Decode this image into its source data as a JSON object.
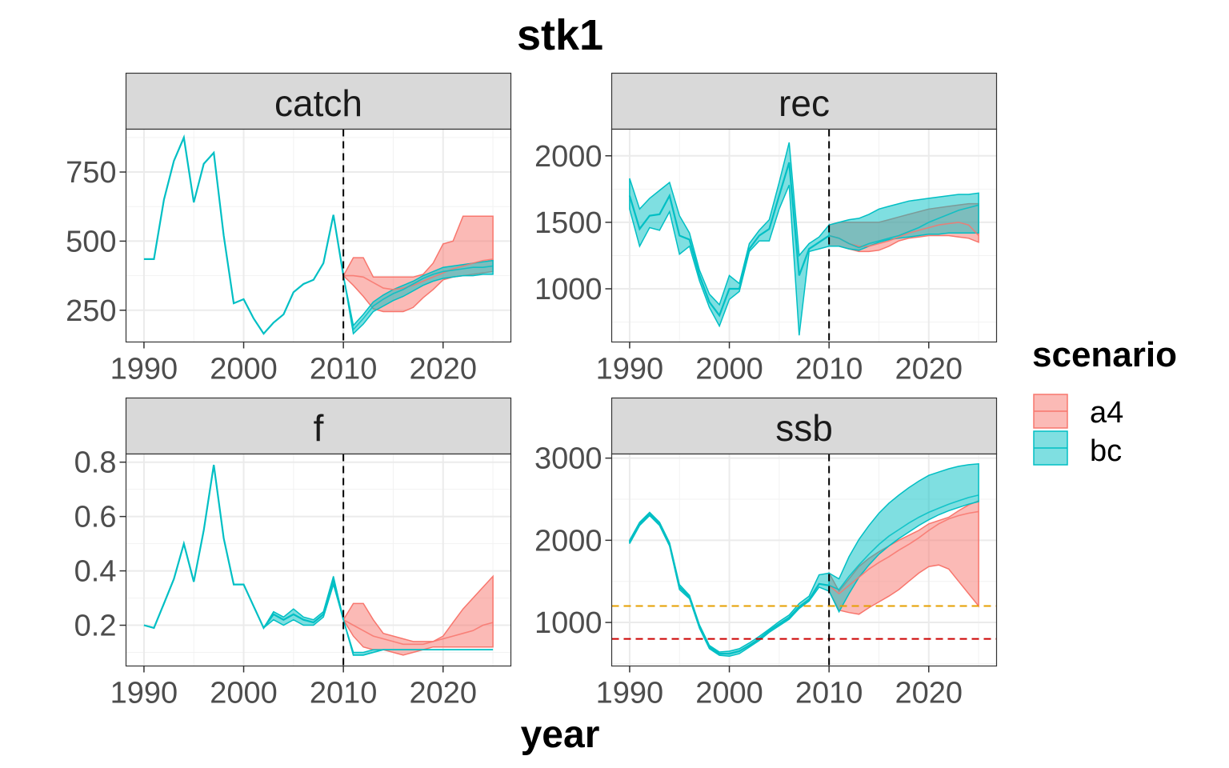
{
  "title": "stk1",
  "xlabel": "year",
  "legend": {
    "title": "scenario",
    "items": [
      {
        "label": "a4",
        "fill": "#F8766D"
      },
      {
        "label": "bc",
        "fill": "#00BFC4"
      }
    ]
  },
  "chart_data": [
    {
      "type": "line",
      "panel": "catch",
      "x_ticks": [
        1990,
        2000,
        2010,
        2020
      ],
      "y_ticks": [
        250,
        500,
        750
      ],
      "ylim": [
        135,
        905
      ],
      "xlim": [
        1988.2,
        2026.8
      ],
      "vline_x": 2010,
      "hlines": [],
      "historical": {
        "x": [
          1990,
          1991,
          1992,
          1993,
          1994,
          1995,
          1996,
          1997,
          1998,
          1999,
          2000,
          2001,
          2002,
          2003,
          2004,
          2005,
          2006,
          2007,
          2008,
          2009,
          2010
        ],
        "y": [
          435,
          435,
          650,
          790,
          875,
          640,
          780,
          820,
          520,
          275,
          290,
          220,
          165,
          205,
          235,
          315,
          345,
          360,
          420,
          595,
          375
        ]
      },
      "series": [
        {
          "name": "a4",
          "x": [
            2010,
            2011,
            2012,
            2013,
            2014,
            2015,
            2016,
            2017,
            2018,
            2019,
            2020,
            2021,
            2022,
            2023,
            2024,
            2025
          ],
          "median": [
            375,
            375,
            370,
            350,
            330,
            325,
            330,
            340,
            355,
            370,
            385,
            400,
            410,
            420,
            430,
            435
          ],
          "lower": [
            375,
            340,
            300,
            255,
            245,
            245,
            245,
            260,
            295,
            325,
            360,
            370,
            375,
            380,
            385,
            390
          ],
          "upper": [
            375,
            440,
            440,
            370,
            370,
            370,
            370,
            370,
            380,
            420,
            490,
            500,
            590,
            590,
            590,
            590
          ]
        },
        {
          "name": "bc",
          "x": [
            2010,
            2011,
            2012,
            2013,
            2014,
            2015,
            2016,
            2017,
            2018,
            2019,
            2020,
            2021,
            2022,
            2023,
            2024,
            2025
          ],
          "median": [
            375,
            180,
            220,
            265,
            290,
            310,
            325,
            345,
            365,
            380,
            390,
            395,
            400,
            405,
            405,
            410
          ],
          "lower": [
            375,
            165,
            200,
            245,
            265,
            285,
            300,
            320,
            340,
            355,
            365,
            370,
            375,
            375,
            380,
            380
          ],
          "upper": [
            375,
            195,
            235,
            280,
            305,
            325,
            340,
            355,
            375,
            390,
            405,
            410,
            415,
            420,
            425,
            430
          ]
        }
      ]
    },
    {
      "type": "line",
      "panel": "rec",
      "x_ticks": [
        1990,
        2000,
        2010,
        2020
      ],
      "y_ticks": [
        1000,
        1500,
        2000
      ],
      "ylim": [
        600,
        2200
      ],
      "xlim": [
        1988.2,
        2026.8
      ],
      "vline_x": 2010,
      "hlines": [],
      "historical": {
        "x": [
          1990,
          1991,
          1992,
          1993,
          1994,
          1995,
          1996,
          1997,
          1998,
          1999,
          2000,
          2001,
          2002,
          2003,
          2004,
          2005,
          2006,
          2007,
          2008,
          2009,
          2010
        ],
        "y": [
          1700,
          1450,
          1550,
          1560,
          1700,
          1400,
          1370,
          1100,
          900,
          800,
          1000,
          1000,
          1300,
          1400,
          1450,
          1700,
          1950,
          1100,
          1300,
          1350,
          1400
        ]
      },
      "hist_lower": [
        1600,
        1320,
        1460,
        1440,
        1580,
        1260,
        1320,
        1060,
        860,
        720,
        920,
        980,
        1280,
        1360,
        1360,
        1600,
        1780,
        650,
        1280,
        1300,
        1320
      ],
      "hist_upper": [
        1830,
        1600,
        1680,
        1740,
        1800,
        1550,
        1420,
        1140,
        960,
        880,
        1100,
        1040,
        1340,
        1440,
        1520,
        1800,
        2100,
        1250,
        1340,
        1390,
        1480
      ],
      "series": [
        {
          "name": "a4",
          "x": [
            2010,
            2011,
            2012,
            2013,
            2014,
            2015,
            2016,
            2017,
            2018,
            2019,
            2020,
            2021,
            2022,
            2023,
            2024,
            2025
          ],
          "median": [
            1400,
            1380,
            1340,
            1320,
            1320,
            1340,
            1360,
            1390,
            1420,
            1440,
            1460,
            1480,
            1490,
            1500,
            1480,
            1400
          ],
          "lower": [
            1320,
            1320,
            1300,
            1280,
            1280,
            1290,
            1320,
            1360,
            1380,
            1390,
            1400,
            1400,
            1400,
            1390,
            1380,
            1350
          ],
          "upper": [
            1480,
            1500,
            1500,
            1500,
            1500,
            1500,
            1520,
            1540,
            1560,
            1580,
            1600,
            1610,
            1620,
            1630,
            1640,
            1640
          ]
        },
        {
          "name": "bc",
          "x": [
            2010,
            2011,
            2012,
            2013,
            2014,
            2015,
            2016,
            2017,
            2018,
            2019,
            2020,
            2021,
            2022,
            2023,
            2024,
            2025
          ],
          "median": [
            1400,
            1380,
            1340,
            1310,
            1340,
            1360,
            1380,
            1400,
            1430,
            1460,
            1500,
            1530,
            1560,
            1590,
            1610,
            1630
          ],
          "lower": [
            1320,
            1320,
            1300,
            1290,
            1320,
            1350,
            1370,
            1380,
            1390,
            1400,
            1410,
            1410,
            1420,
            1420,
            1420,
            1420
          ],
          "upper": [
            1480,
            1500,
            1520,
            1530,
            1560,
            1600,
            1620,
            1640,
            1660,
            1670,
            1680,
            1690,
            1700,
            1710,
            1710,
            1720
          ]
        }
      ]
    },
    {
      "type": "line",
      "panel": "f",
      "x_ticks": [
        1990,
        2000,
        2010,
        2020
      ],
      "y_ticks": [
        0.2,
        0.4,
        0.6,
        0.8
      ],
      "ylim": [
        0.05,
        0.83
      ],
      "xlim": [
        1988.2,
        2026.8
      ],
      "vline_x": 2010,
      "hlines": [],
      "historical": {
        "x": [
          1990,
          1991,
          1992,
          1993,
          1994,
          1995,
          1996,
          1997,
          1998,
          1999,
          2000,
          2001,
          2002,
          2003,
          2004,
          2005,
          2006,
          2007,
          2008,
          2009,
          2010
        ],
        "y": [
          0.2,
          0.19,
          0.28,
          0.37,
          0.5,
          0.36,
          0.55,
          0.79,
          0.52,
          0.35,
          0.35,
          0.27,
          0.19,
          0.24,
          0.22,
          0.24,
          0.22,
          0.21,
          0.24,
          0.37,
          0.22
        ]
      },
      "hist_lower": [
        0.2,
        0.19,
        0.28,
        0.37,
        0.5,
        0.36,
        0.55,
        0.79,
        0.52,
        0.35,
        0.35,
        0.27,
        0.19,
        0.22,
        0.2,
        0.22,
        0.2,
        0.2,
        0.23,
        0.35,
        0.22
      ],
      "hist_upper": [
        0.2,
        0.19,
        0.28,
        0.37,
        0.5,
        0.36,
        0.55,
        0.79,
        0.52,
        0.35,
        0.35,
        0.27,
        0.19,
        0.25,
        0.23,
        0.26,
        0.23,
        0.22,
        0.25,
        0.38,
        0.22
      ],
      "series": [
        {
          "name": "a4",
          "x": [
            2010,
            2011,
            2012,
            2013,
            2014,
            2015,
            2016,
            2017,
            2018,
            2019,
            2020,
            2021,
            2022,
            2023,
            2024,
            2025
          ],
          "median": [
            0.22,
            0.2,
            0.18,
            0.16,
            0.15,
            0.14,
            0.13,
            0.13,
            0.13,
            0.14,
            0.15,
            0.16,
            0.17,
            0.18,
            0.2,
            0.21
          ],
          "lower": [
            0.22,
            0.16,
            0.12,
            0.11,
            0.11,
            0.1,
            0.09,
            0.1,
            0.11,
            0.12,
            0.12,
            0.12,
            0.12,
            0.12,
            0.12,
            0.12
          ],
          "upper": [
            0.22,
            0.28,
            0.28,
            0.22,
            0.17,
            0.16,
            0.15,
            0.14,
            0.14,
            0.14,
            0.16,
            0.21,
            0.26,
            0.3,
            0.34,
            0.38
          ]
        },
        {
          "name": "bc",
          "x": [
            2010,
            2011,
            2012,
            2013,
            2014,
            2015,
            2016,
            2017,
            2018,
            2019,
            2020,
            2021,
            2022,
            2023,
            2024,
            2025
          ],
          "median": [
            0.22,
            0.09,
            0.09,
            0.1,
            0.11,
            0.11,
            0.11,
            0.11,
            0.11,
            0.11,
            0.11,
            0.11,
            0.11,
            0.11,
            0.11,
            0.11
          ],
          "lower": [
            0.22,
            0.09,
            0.09,
            0.1,
            0.11,
            0.11,
            0.11,
            0.11,
            0.11,
            0.11,
            0.11,
            0.11,
            0.11,
            0.11,
            0.11,
            0.11
          ],
          "upper": [
            0.22,
            0.1,
            0.1,
            0.11,
            0.11,
            0.11,
            0.11,
            0.11,
            0.11,
            0.11,
            0.11,
            0.11,
            0.11,
            0.11,
            0.11,
            0.11
          ]
        }
      ]
    },
    {
      "type": "line",
      "panel": "ssb",
      "x_ticks": [
        1990,
        2000,
        2010,
        2020
      ],
      "y_ticks": [
        1000,
        2000,
        3000
      ],
      "ylim": [
        470,
        3050
      ],
      "xlim": [
        1988.2,
        2026.8
      ],
      "vline_x": 2010,
      "hlines": [
        {
          "y": 1200,
          "color": "#E69F00"
        },
        {
          "y": 800,
          "color": "#CC0000"
        }
      ],
      "historical": {
        "x": [
          1990,
          1991,
          1992,
          1993,
          1994,
          1995,
          1996,
          1997,
          1998,
          1999,
          2000,
          2001,
          2002,
          2003,
          2004,
          2005,
          2006,
          2007,
          2008,
          2009,
          2010
        ],
        "y": [
          1980,
          2200,
          2320,
          2200,
          1950,
          1430,
          1310,
          950,
          700,
          620,
          620,
          650,
          720,
          800,
          900,
          980,
          1060,
          1190,
          1280,
          1470,
          1450
        ]
      },
      "hist_lower": [
        1960,
        2180,
        2300,
        2180,
        1930,
        1400,
        1290,
        930,
        680,
        600,
        590,
        620,
        700,
        780,
        880,
        960,
        1040,
        1170,
        1260,
        1430,
        1380
      ],
      "hist_upper": [
        2000,
        2220,
        2340,
        2220,
        1970,
        1460,
        1330,
        970,
        720,
        640,
        650,
        680,
        750,
        830,
        920,
        1010,
        1090,
        1230,
        1320,
        1580,
        1600
      ],
      "series": [
        {
          "name": "a4",
          "x": [
            2010,
            2011,
            2012,
            2013,
            2014,
            2015,
            2016,
            2017,
            2018,
            2019,
            2020,
            2021,
            2022,
            2023,
            2024,
            2025
          ],
          "median": [
            1450,
            1350,
            1450,
            1550,
            1650,
            1730,
            1800,
            1880,
            1950,
            2030,
            2120,
            2200,
            2260,
            2300,
            2330,
            2350
          ],
          "lower": [
            1380,
            1150,
            1120,
            1100,
            1180,
            1250,
            1320,
            1400,
            1500,
            1600,
            1680,
            1700,
            1650,
            1500,
            1350,
            1200
          ],
          "upper": [
            1600,
            1380,
            1530,
            1680,
            1780,
            1860,
            1930,
            2000,
            2060,
            2120,
            2200,
            2240,
            2280,
            2360,
            2430,
            2480
          ]
        },
        {
          "name": "bc",
          "x": [
            2010,
            2011,
            2012,
            2013,
            2014,
            2015,
            2016,
            2017,
            2018,
            2019,
            2020,
            2021,
            2022,
            2023,
            2024,
            2025
          ],
          "median": [
            1450,
            1400,
            1560,
            1700,
            1830,
            1950,
            2050,
            2130,
            2210,
            2280,
            2340,
            2390,
            2440,
            2480,
            2520,
            2550
          ],
          "lower": [
            1380,
            1130,
            1350,
            1550,
            1700,
            1830,
            1930,
            2020,
            2100,
            2180,
            2250,
            2310,
            2360,
            2400,
            2440,
            2470
          ],
          "upper": [
            1600,
            1530,
            1800,
            2010,
            2180,
            2330,
            2450,
            2550,
            2640,
            2720,
            2790,
            2830,
            2870,
            2900,
            2920,
            2930
          ]
        }
      ]
    }
  ]
}
